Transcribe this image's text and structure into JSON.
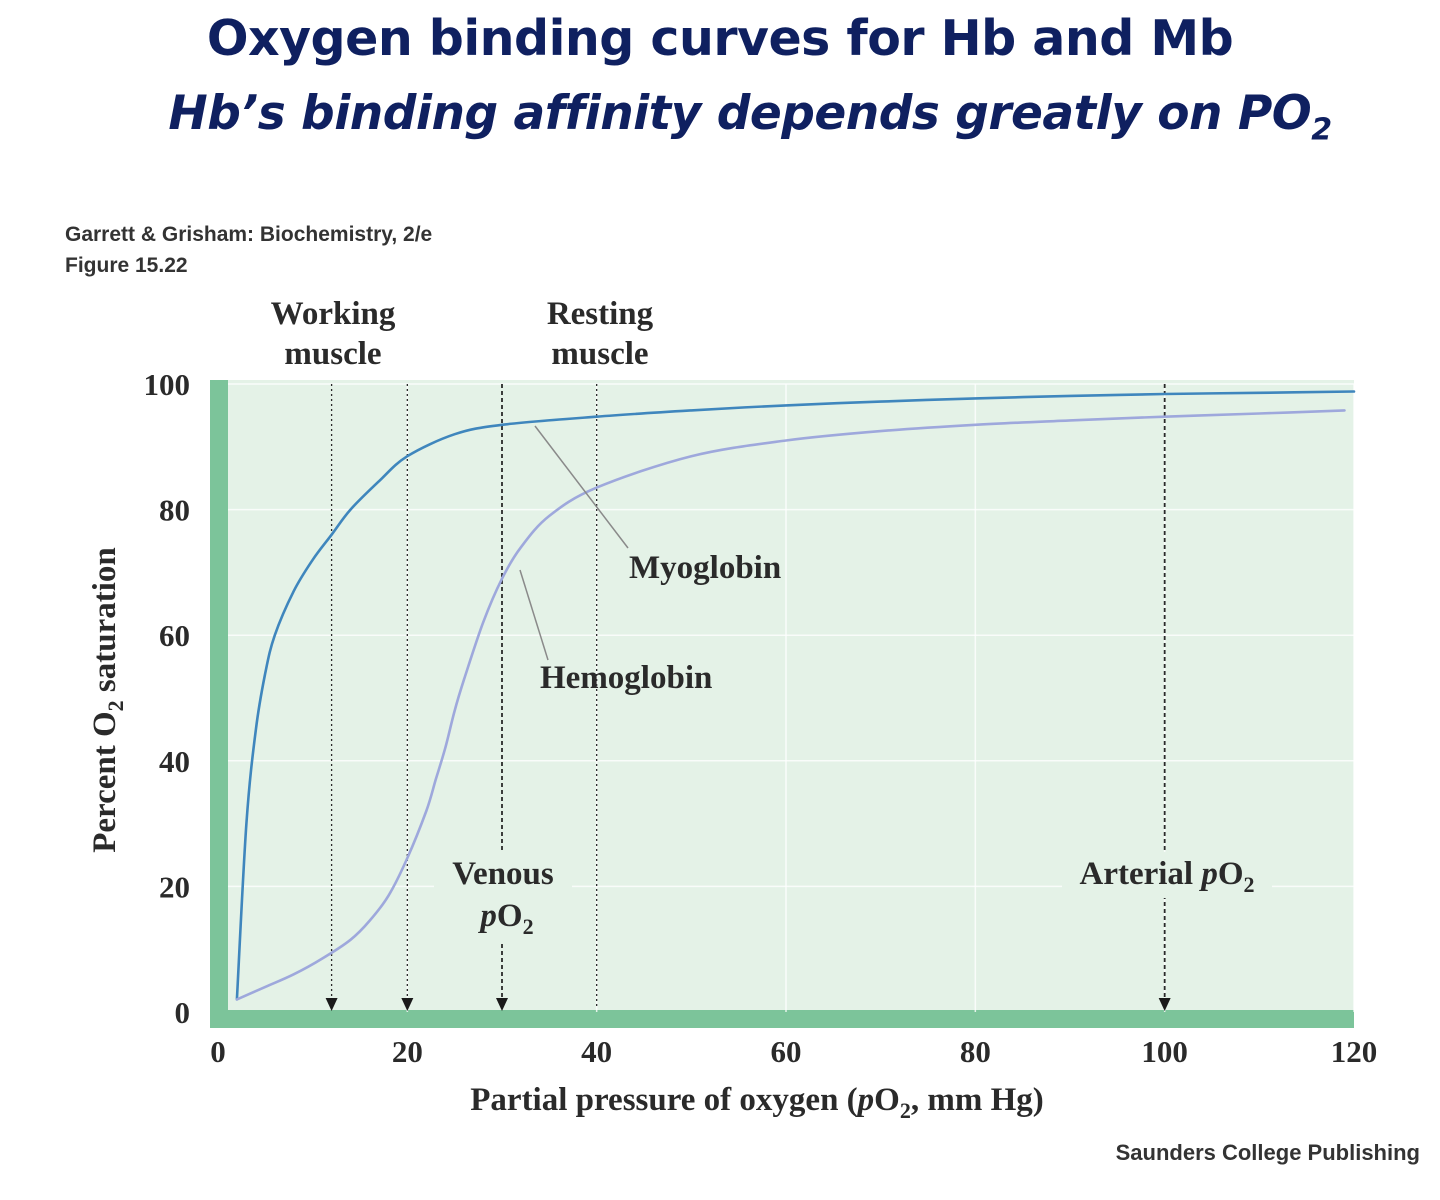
{
  "slide": {
    "title": "Oxygen binding curves for Hb and Mb",
    "subtitle_main": "Hb’s binding affinity depends greatly on PO",
    "subtitle_sub": "2"
  },
  "source": {
    "line1": "Garrett & Grisham: Biochemistry, 2/e",
    "line2": "Figure 15.22"
  },
  "publisher": "Saunders College Publishing",
  "colors": {
    "plot_background": "#e4f2e7",
    "axis_band": "#7cc49a",
    "myoglobin_curve": "#3f86bd",
    "hemoglobin_curve": "#9ea8dc",
    "title": "#0f2060"
  },
  "chart_data": {
    "type": "line",
    "xlabel_main": "Partial pressure of oxygen (",
    "xlabel_p": "p",
    "xlabel_o": "O",
    "xlabel_sub": "2",
    "xlabel_end": ", mm Hg)",
    "ylabel_main": "Percent  O",
    "ylabel_sub": "2",
    "ylabel_end": " saturation",
    "xlim": [
      0,
      120
    ],
    "ylim": [
      0,
      100
    ],
    "xticks": [
      0,
      20,
      40,
      60,
      80,
      100,
      120
    ],
    "yticks": [
      0,
      20,
      40,
      60,
      80,
      100
    ],
    "grid": true,
    "series": [
      {
        "name": "Myoglobin",
        "x": [
          2,
          3,
          4,
          5,
          6,
          8,
          10,
          12,
          14,
          17,
          20,
          25,
          30,
          40,
          50,
          60,
          70,
          80,
          90,
          100,
          110,
          120
        ],
        "values": [
          2,
          30,
          45,
          54,
          60,
          67,
          72,
          76,
          80,
          84.5,
          88.5,
          92,
          93.5,
          94.8,
          95.8,
          96.6,
          97.2,
          97.7,
          98.1,
          98.4,
          98.6,
          98.8
        ]
      },
      {
        "name": "Hemoglobin",
        "x": [
          2,
          5,
          8,
          11,
          14,
          16,
          18,
          20,
          22,
          23,
          24,
          25,
          26,
          28,
          30,
          32,
          35,
          40,
          50,
          60,
          70,
          80,
          90,
          100,
          110,
          119
        ],
        "values": [
          2,
          4,
          6,
          8.5,
          11.5,
          14.5,
          18.5,
          24.5,
          32,
          37,
          42,
          48,
          53,
          62,
          69,
          74,
          79,
          83.5,
          88.5,
          91,
          92.5,
          93.5,
          94.2,
          94.8,
          95.3,
          95.8
        ]
      }
    ],
    "reference_lines": [
      {
        "x": 12,
        "style": "dotted",
        "arrow": true
      },
      {
        "x": 20,
        "style": "dotted",
        "arrow": true
      },
      {
        "x": 30,
        "style": "dashed",
        "arrow": true
      },
      {
        "x": 40,
        "style": "dotted",
        "arrow": false
      },
      {
        "x": 100,
        "style": "dashed",
        "arrow": true
      }
    ],
    "annotations": [
      {
        "name": "working-muscle",
        "lines": [
          "Working",
          "muscle"
        ]
      },
      {
        "name": "resting-muscle",
        "lines": [
          "Resting",
          "muscle"
        ]
      },
      {
        "name": "myoglobin",
        "lines": [
          "Myoglobin"
        ]
      },
      {
        "name": "hemoglobin",
        "lines": [
          "Hemoglobin"
        ]
      },
      {
        "name": "venous-po2",
        "lines": [
          "Venous",
          "pO2"
        ]
      },
      {
        "name": "arterial-po2",
        "lines": [
          "Arterial pO2"
        ]
      }
    ],
    "annotation_text": {
      "working_1": "Working",
      "working_2": "muscle",
      "resting_1": "Resting",
      "resting_2": "muscle",
      "myoglobin": "Myoglobin",
      "hemoglobin": "Hemoglobin",
      "venous_1": "Venous",
      "venous_p": "p",
      "venous_o": "O",
      "venous_sub": "2",
      "arterial_main": "Arterial ",
      "arterial_p": "p",
      "arterial_o": "O",
      "arterial_sub": "2"
    }
  }
}
